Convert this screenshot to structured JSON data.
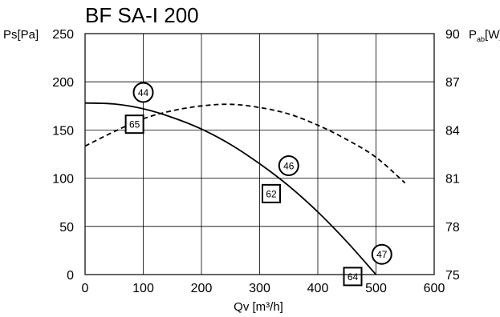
{
  "chart_data": {
    "type": "line",
    "title": "BF SA-I 200",
    "xlabel": "Qv [m³/h]",
    "ylabel": "Ps[Pa]",
    "y2label": {
      "main": "P",
      "sub": "ab",
      "unit": "[W]"
    },
    "xlim": [
      0,
      600
    ],
    "ylim": [
      0,
      250
    ],
    "y2lim": [
      75,
      90
    ],
    "xticks": [
      "0",
      "100",
      "200",
      "300",
      "400",
      "500",
      "600"
    ],
    "yticks": [
      "0",
      "50",
      "100",
      "150",
      "200",
      "250"
    ],
    "y2ticks": [
      "75",
      "78",
      "81",
      "84",
      "87",
      "90"
    ],
    "grid": true,
    "series": [
      {
        "axis": "left",
        "style": "solid",
        "x": [
          0,
          50,
          100,
          150,
          200,
          250,
          300,
          350,
          400,
          450,
          500
        ],
        "y": [
          178,
          177,
          172,
          163,
          151,
          135,
          115,
          92,
          65,
          34,
          0
        ]
      },
      {
        "axis": "right",
        "style": "dashed",
        "x": [
          0,
          50,
          100,
          150,
          200,
          250,
          300,
          350,
          400,
          450,
          500,
          550
        ],
        "y": [
          83.0,
          83.9,
          84.7,
          85.2,
          85.5,
          85.6,
          85.4,
          85.0,
          84.3,
          83.4,
          82.3,
          80.7
        ]
      }
    ],
    "annotations": [
      {
        "text": "44",
        "shape": "circle",
        "x": 100,
        "y": 189
      },
      {
        "text": "46",
        "shape": "circle",
        "x": 350,
        "y": 113
      },
      {
        "text": "47",
        "shape": "circle",
        "x": 510,
        "y": 21
      },
      {
        "text": "65",
        "shape": "square",
        "x": 85,
        "y": 156
      },
      {
        "text": "62",
        "shape": "square",
        "x": 320,
        "y": 84
      },
      {
        "text": "64",
        "shape": "square",
        "x": 460,
        "y": -2
      }
    ]
  }
}
